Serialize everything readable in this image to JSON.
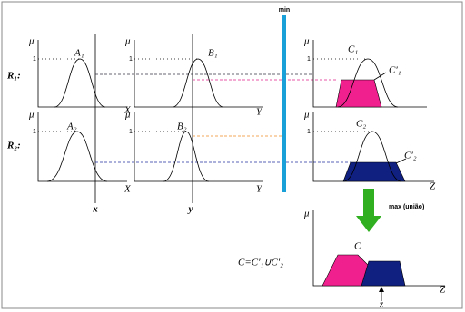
{
  "header": {
    "operator_min": "min",
    "operator_max": "max (união)"
  },
  "rules": [
    {
      "label": "R₁:"
    },
    {
      "label": "R₂:"
    }
  ],
  "axis": {
    "membership": "μ",
    "one": "1"
  },
  "inputs": {
    "x": "x",
    "y": "y"
  },
  "panels": [
    {
      "set": "A₁",
      "axis": "X"
    },
    {
      "set": "B₁",
      "axis": "Y"
    },
    {
      "set": "C₁",
      "clipped": "C′₁"
    },
    {
      "set": "A₂",
      "axis": "X"
    },
    {
      "set": "B₂",
      "axis": "Y"
    },
    {
      "set": "C₂",
      "clipped": "C′₂",
      "axis": "Z"
    }
  ],
  "output": {
    "set": "C",
    "formula": "C=C′₁∪C′₂",
    "axis": "Z",
    "crisp": "z"
  }
}
